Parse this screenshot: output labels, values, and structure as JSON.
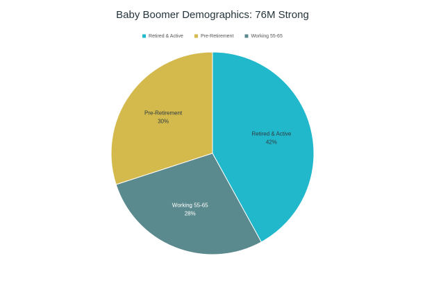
{
  "chart_data": {
    "type": "pie",
    "title": "Baby Boomer Demographics: 76M Strong",
    "categories": [
      "Retired & Active",
      "Pre-Retirement",
      "Working 55-65"
    ],
    "values": [
      42,
      30,
      28
    ],
    "value_labels": [
      "42%",
      "30%",
      "28%"
    ],
    "colors": [
      "#22b8cc",
      "#d4b94c",
      "#5b8a8e"
    ],
    "legend": "top"
  }
}
